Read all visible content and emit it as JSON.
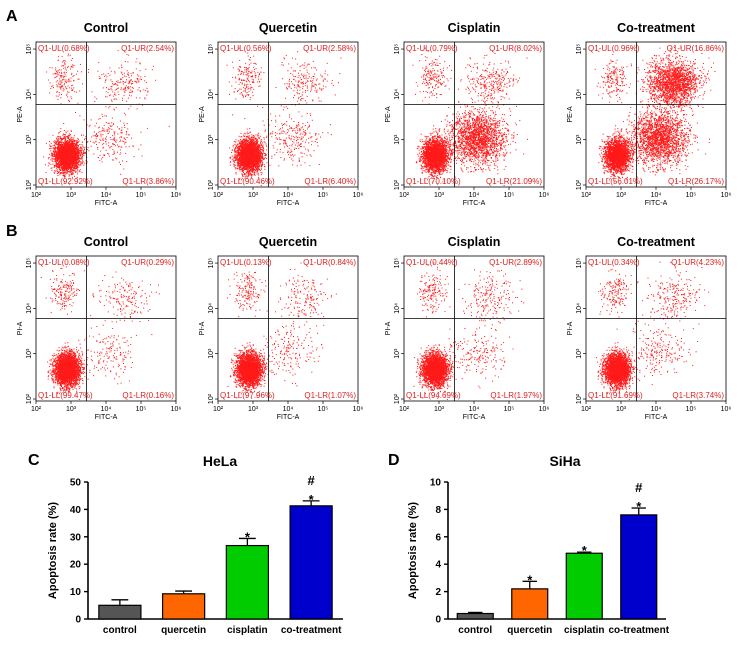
{
  "panel_letters": {
    "a": "A",
    "b": "B",
    "c": "C",
    "d": "D"
  },
  "colors": {
    "dots": "#ff1a1a",
    "quad_text": "#e02020",
    "axis": "#000000"
  },
  "flow": {
    "a": {
      "x_label": "FITC-A",
      "y_label": "PE-A",
      "plots": [
        {
          "title": "Control",
          "ul": "Q1-UL(0.68%)",
          "ur": "Q1-UR(2.54%)",
          "ll": "Q1-LL(92.92%)",
          "lr": "Q1-LR(3.86%)"
        },
        {
          "title": "Quercetin",
          "ul": "Q1-UL(0.56%)",
          "ur": "Q1-UR(2.58%)",
          "ll": "Q1-LL(90.46%)",
          "lr": "Q1-LR(6.40%)"
        },
        {
          "title": "Cisplatin",
          "ul": "Q1-UL(0.79%)",
          "ur": "Q1-UR(8.02%)",
          "ll": "Q1-LL(70.10%)",
          "lr": "Q1-LR(21.09%)"
        },
        {
          "title": "Co-treatment",
          "ul": "Q1-UL(0.96%)",
          "ur": "Q1-UR(16.86%)",
          "ll": "Q1-LL(56.01%)",
          "lr": "Q1-LR(26.17%)"
        }
      ]
    },
    "b": {
      "x_label": "FITC-A",
      "y_label": "PI-A",
      "plots": [
        {
          "title": "Control",
          "ul": "Q1-UL(0.08%)",
          "ur": "Q1-UR(0.29%)",
          "ll": "Q1-LL(99.47%)",
          "lr": "Q1-LR(0.16%)"
        },
        {
          "title": "Quercetin",
          "ul": "Q1-UL(0.13%)",
          "ur": "Q1-UR(0.84%)",
          "ll": "Q1-LL(97.96%)",
          "lr": "Q1-LR(1.07%)"
        },
        {
          "title": "Cisplatin",
          "ul": "Q1-UL(0.44%)",
          "ur": "Q1-UR(2.89%)",
          "ll": "Q1-LL(94.69%)",
          "lr": "Q1-LR(1.97%)"
        },
        {
          "title": "Co-treatment",
          "ul": "Q1-UL(0.34%)",
          "ur": "Q1-UR(4.23%)",
          "ll": "Q1-LL(91.69%)",
          "lr": "Q1-LR(3.74%)"
        }
      ]
    }
  },
  "chart_data": [
    {
      "type": "bar",
      "title": "HeLa",
      "ylabel": "Apoptosis rate (%)",
      "xlabel": "",
      "categories": [
        "control",
        "quercetin",
        "cisplatin",
        "co-treatment"
      ],
      "values": [
        5.0,
        9.2,
        26.8,
        41.3
      ],
      "errors": [
        2.0,
        1.0,
        2.6,
        1.8
      ],
      "annotations": [
        [],
        [],
        [
          "*"
        ],
        [
          "*",
          "#"
        ]
      ],
      "colors": [
        "#555555",
        "#ff6600",
        "#00cc00",
        "#0000cc"
      ],
      "ylim": [
        0,
        50
      ],
      "yticks": [
        0,
        10,
        20,
        30,
        40,
        50
      ]
    },
    {
      "type": "bar",
      "title": "SiHa",
      "ylabel": "Apoptosis rate (%)",
      "xlabel": "",
      "categories": [
        "control",
        "quercetin",
        "cisplatin",
        "co-treatment"
      ],
      "values": [
        0.4,
        2.2,
        4.8,
        7.6
      ],
      "errors": [
        0.08,
        0.55,
        0.08,
        0.5
      ],
      "annotations": [
        [],
        [
          "*"
        ],
        [
          "*"
        ],
        [
          "*",
          "#"
        ]
      ],
      "colors": [
        "#555555",
        "#ff6600",
        "#00cc00",
        "#0000cc"
      ],
      "ylim": [
        0,
        10
      ],
      "yticks": [
        0,
        2,
        4,
        6,
        8,
        10
      ]
    }
  ]
}
